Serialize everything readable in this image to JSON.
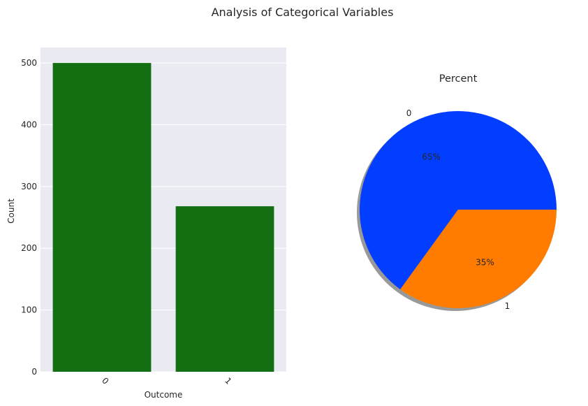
{
  "figure": {
    "title": "Analysis of Categorical Variables"
  },
  "chart_data": [
    {
      "type": "bar",
      "categories": [
        "0",
        "1"
      ],
      "values": [
        500,
        268
      ],
      "xlabel": "Outcome",
      "ylabel": "Count",
      "ylim": [
        0,
        525
      ],
      "yticks": [
        0,
        100,
        200,
        300,
        400,
        500
      ],
      "bar_color": "#127012",
      "background": "#eaeaf2",
      "grid": true
    },
    {
      "type": "pie",
      "title": "Percent",
      "labels": [
        "0",
        "1"
      ],
      "values": [
        65,
        35
      ],
      "autopct": [
        "65%",
        "35%"
      ],
      "colors": [
        "#023eff",
        "#ff7c00"
      ],
      "shadow": true
    }
  ]
}
